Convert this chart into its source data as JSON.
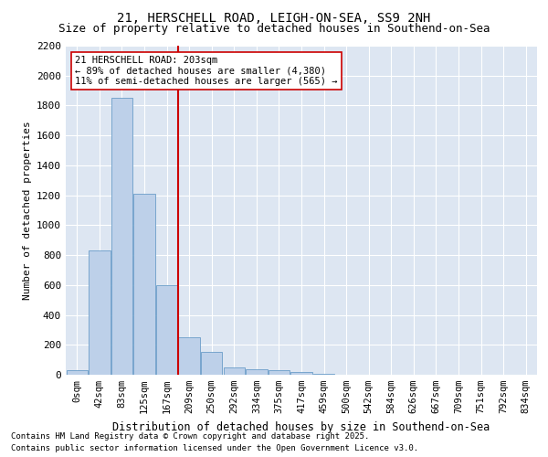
{
  "title1": "21, HERSCHELL ROAD, LEIGH-ON-SEA, SS9 2NH",
  "title2": "Size of property relative to detached houses in Southend-on-Sea",
  "xlabel": "Distribution of detached houses by size in Southend-on-Sea",
  "ylabel": "Number of detached properties",
  "bar_labels": [
    "0sqm",
    "42sqm",
    "83sqm",
    "125sqm",
    "167sqm",
    "209sqm",
    "250sqm",
    "292sqm",
    "334sqm",
    "375sqm",
    "417sqm",
    "459sqm",
    "500sqm",
    "542sqm",
    "584sqm",
    "626sqm",
    "667sqm",
    "709sqm",
    "751sqm",
    "792sqm",
    "834sqm"
  ],
  "bar_values": [
    30,
    830,
    1850,
    1210,
    600,
    250,
    150,
    50,
    35,
    30,
    20,
    5,
    0,
    0,
    0,
    0,
    0,
    0,
    0,
    0,
    0
  ],
  "bar_color": "#bdd0e9",
  "bar_edge_color": "#6a9dc8",
  "vline_x": 4.5,
  "vline_color": "#cc0000",
  "annotation_text": "21 HERSCHELL ROAD: 203sqm\n← 89% of detached houses are smaller (4,380)\n11% of semi-detached houses are larger (565) →",
  "annotation_box_color": "#ffffff",
  "annotation_box_edge": "#cc0000",
  "ylim": [
    0,
    2200
  ],
  "yticks": [
    0,
    200,
    400,
    600,
    800,
    1000,
    1200,
    1400,
    1600,
    1800,
    2000,
    2200
  ],
  "footnote1": "Contains HM Land Registry data © Crown copyright and database right 2025.",
  "footnote2": "Contains public sector information licensed under the Open Government Licence v3.0.",
  "bg_color": "#dde6f2",
  "fig_bg": "#ffffff",
  "title1_fontsize": 10,
  "title2_fontsize": 9,
  "grid_color": "#ffffff"
}
